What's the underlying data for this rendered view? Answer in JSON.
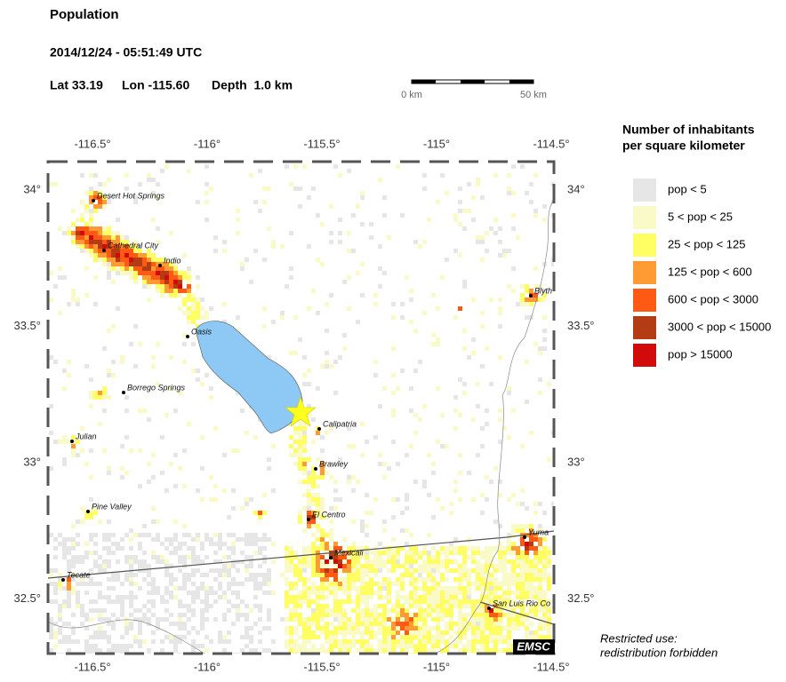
{
  "header": {
    "title": "Population",
    "time": "2014/12/24 - 05:51:49 UTC",
    "lat": "Lat 33.19",
    "lon": "Lon -115.60",
    "depth": "Depth  1.0 km"
  },
  "scale": {
    "start": "0 km",
    "end": "50 km"
  },
  "map": {
    "lon_ticks": [
      {
        "value": -116.5,
        "label": "-116.5°"
      },
      {
        "value": -116,
        "label": "-116°"
      },
      {
        "value": -115.5,
        "label": "-115.5°"
      },
      {
        "value": -115,
        "label": "-115°"
      },
      {
        "value": -114.5,
        "label": "-114.5°"
      }
    ],
    "lat_ticks": [
      {
        "value": 34,
        "label": "34°"
      },
      {
        "value": 33.5,
        "label": "33.5°"
      },
      {
        "value": 33,
        "label": "33°"
      },
      {
        "value": 32.5,
        "label": "32.5°"
      }
    ],
    "cities": [
      "Desert Hot Springs",
      "Cathedral City",
      "Indio",
      "Oasis",
      "Borrego Springs",
      "Calipatria",
      "Julian",
      "Brawley",
      "Pine Valley",
      "El Centro",
      "Yuma",
      "Mexicali",
      "Tecate",
      "San Luis Rio Co",
      "Blyth"
    ],
    "logo": "EMSC"
  },
  "legend": {
    "title": [
      "Number of inhabitants",
      "per square kilometer"
    ],
    "items": [
      {
        "label": "pop < 5",
        "color": "#e6e6e6"
      },
      {
        "label": "5 < pop < 25",
        "color": "#fafac8"
      },
      {
        "label": "25 < pop < 125",
        "color": "#ffff64"
      },
      {
        "label": "125 < pop < 600",
        "color": "#ff9b32"
      },
      {
        "label": "600 < pop < 3000",
        "color": "#ff5a14"
      },
      {
        "label": "3000 < pop < 15000",
        "color": "#b43c14"
      },
      {
        "label": "pop > 15000",
        "color": "#d20a0a"
      }
    ]
  },
  "footer": [
    "Restricted use:",
    "redistribution forbidden"
  ]
}
